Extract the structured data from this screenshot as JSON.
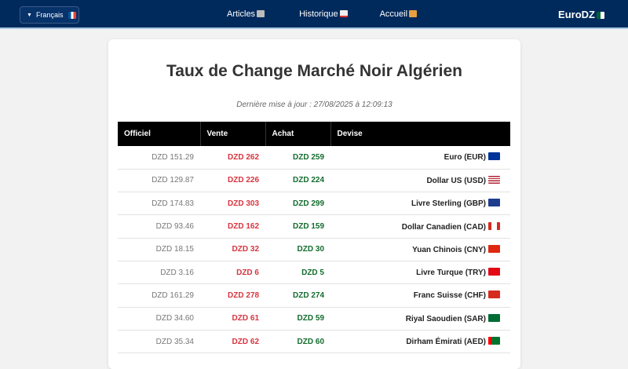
{
  "nav": {
    "language": "Français",
    "language_flag": "fr",
    "links": [
      {
        "label": "Articles",
        "icon": "newspaper-icon"
      },
      {
        "label": "Historique",
        "icon": "chart-up-icon"
      },
      {
        "label": "Accueil",
        "icon": "house-icon"
      }
    ],
    "brand": "EuroDZ",
    "brand_flag": "dz"
  },
  "main": {
    "title": "Taux de Change Marché Noir Algérien",
    "updated": "Dernière mise à jour : 27/08/2025 à 12:09:13",
    "columns": [
      "Officiel",
      "Vente",
      "Achat",
      "Devise"
    ],
    "rows": [
      {
        "officiel": "DZD 151.29",
        "vente": "DZD 262",
        "achat": "DZD 259",
        "devise": "Euro (EUR)",
        "flag": "eu"
      },
      {
        "officiel": "DZD 129.87",
        "vente": "DZD 226",
        "achat": "DZD 224",
        "devise": "Dollar US (USD)",
        "flag": "us"
      },
      {
        "officiel": "DZD 174.83",
        "vente": "DZD 303",
        "achat": "DZD 299",
        "devise": "Livre Sterling (GBP)",
        "flag": "gb"
      },
      {
        "officiel": "DZD 93.46",
        "vente": "DZD 162",
        "achat": "DZD 159",
        "devise": "Dollar Canadien (CAD)",
        "flag": "ca"
      },
      {
        "officiel": "DZD 18.15",
        "vente": "DZD 32",
        "achat": "DZD 30",
        "devise": "Yuan Chinois (CNY)",
        "flag": "cn"
      },
      {
        "officiel": "DZD 3.16",
        "vente": "DZD 6",
        "achat": "DZD 5",
        "devise": "Livre Turque (TRY)",
        "flag": "tr"
      },
      {
        "officiel": "DZD 161.29",
        "vente": "DZD 278",
        "achat": "DZD 274",
        "devise": "Franc Suisse (CHF)",
        "flag": "ch"
      },
      {
        "officiel": "DZD 34.60",
        "vente": "DZD 61",
        "achat": "DZD 59",
        "devise": "Riyal Saoudien (SAR)",
        "flag": "sa"
      },
      {
        "officiel": "DZD 35.34",
        "vente": "DZD 62",
        "achat": "DZD 60",
        "devise": "Dirham Émirati (AED)",
        "flag": "ae"
      }
    ]
  }
}
